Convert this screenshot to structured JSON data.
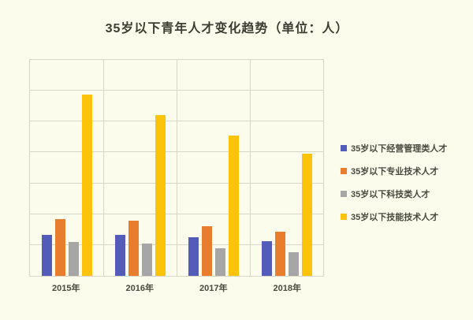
{
  "title": "35岁以下青年人才变化趋势（单位：人）",
  "colors": {
    "background": "#fcfcec",
    "gridline": "#d9d6c6",
    "title_text": "#3d3c33",
    "label_text": "#4a4940"
  },
  "chart_data": {
    "type": "bar",
    "title": "35岁以下青年人才变化趋势（单位：人）",
    "xlabel": "",
    "ylabel": "",
    "categories": [
      "2015年",
      "2016年",
      "2017年",
      "2018年"
    ],
    "series": [
      {
        "name": "35岁以下经营管理类人才",
        "color": "#545cba",
        "values": [
          1340,
          1320,
          1240,
          1120
        ]
      },
      {
        "name": "35岁以下专业技术人才",
        "color": "#e87d2e",
        "values": [
          1830,
          1780,
          1600,
          1420
        ]
      },
      {
        "name": "35岁以下科技类人才",
        "color": "#a6a6a6",
        "values": [
          1090,
          1040,
          890,
          760
        ]
      },
      {
        "name": "35岁以下技能技术人才",
        "color": "#fdc30b",
        "values": [
          5880,
          5220,
          4540,
          3960
        ]
      }
    ],
    "ylim": [
      0,
      7000
    ],
    "y_gridline_interval": 1000,
    "y_axis_labels_visible": false,
    "x_gridlines": true,
    "grid": true,
    "legend_position": "right"
  }
}
